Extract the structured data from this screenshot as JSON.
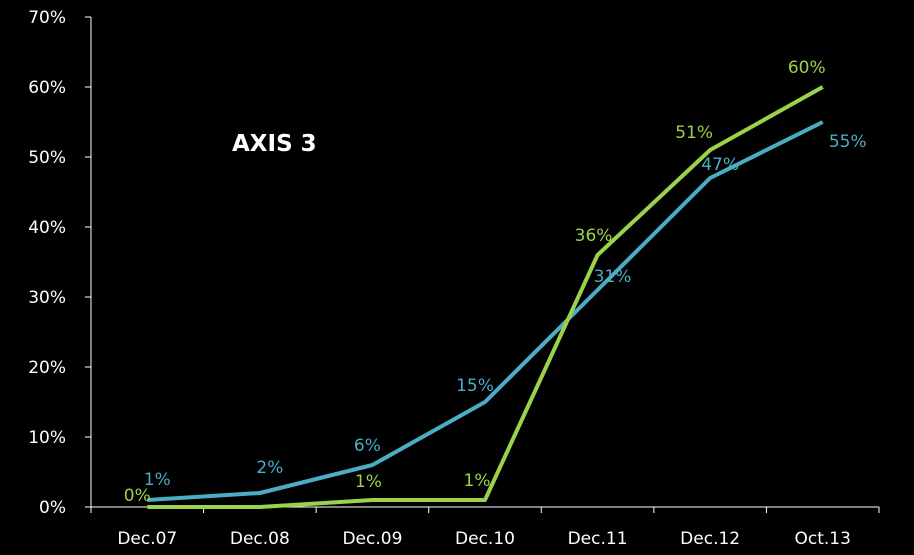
{
  "chart_data": {
    "type": "line",
    "title": "AXIS 3",
    "xlabel": "",
    "ylabel": "",
    "categories": [
      "Dec.07",
      "Dec.08",
      "Dec.09",
      "Dec.10",
      "Dec.11",
      "Dec.12",
      "Oct.13"
    ],
    "ylim": [
      0,
      70
    ],
    "yticks": [
      "0%",
      "10%",
      "20%",
      "30%",
      "40%",
      "50%",
      "60%",
      "70%"
    ],
    "grid": false,
    "legend": "none",
    "series": [
      {
        "color": "#4bacc6",
        "values": [
          1,
          2,
          6,
          15,
          31,
          47,
          55
        ],
        "labels": [
          "1%",
          "2%",
          "6%",
          "15%",
          "31%",
          "47%",
          "55%"
        ]
      },
      {
        "color": "#9bd14b",
        "values": [
          0,
          0,
          1,
          1,
          36,
          51,
          60
        ],
        "labels": [
          "0%",
          "",
          "1%",
          "1%",
          "36%",
          "51%",
          "60%"
        ]
      }
    ]
  }
}
